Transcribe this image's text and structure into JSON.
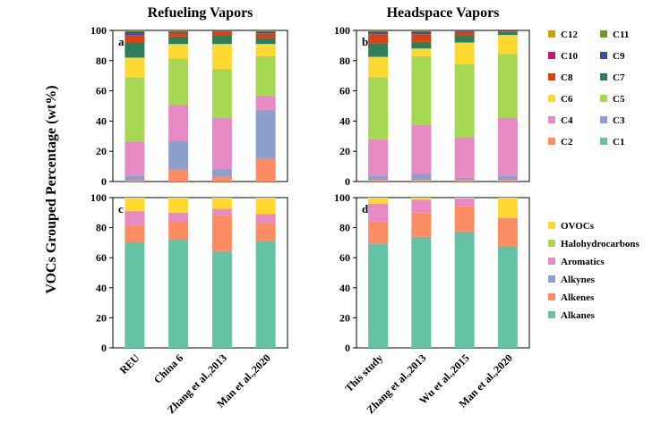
{
  "chart_data": {
    "type": "bar",
    "stacked": true,
    "ylabel": "VOCs Grouped Percentage (wt%)",
    "ylim": [
      0,
      100
    ],
    "yticks": [
      0,
      20,
      40,
      60,
      80,
      100
    ],
    "column_titles": [
      "Refueling Vapors",
      "Headspace Vapors"
    ],
    "legend_carbon": {
      "entries": [
        "C12",
        "C11",
        "C10",
        "C9",
        "C8",
        "C7",
        "C6",
        "C5",
        "C4",
        "C3",
        "C2",
        "C1"
      ],
      "colors": {
        "C1": "#66c2a5",
        "C2": "#fc8d62",
        "C3": "#8da0cb",
        "C4": "#e78ac3",
        "C5": "#a6d854",
        "C6": "#ffd92f",
        "C7": "#2e7d5b",
        "C8": "#d9420f",
        "C9": "#3a4f9e",
        "C10": "#c2187a",
        "C11": "#6b9e23",
        "C12": "#c9a10e"
      }
    },
    "legend_group": {
      "entries": [
        "OVOCs",
        "Halohydrocarbons",
        "Aromatics",
        "Alkynes",
        "Alkenes",
        "Alkanes"
      ],
      "colors": {
        "Alkanes": "#66c2a5",
        "Alkenes": "#fc8d62",
        "Alkynes": "#8da0cb",
        "Aromatics": "#e78ac3",
        "Halohydrocarbons": "#a6d854",
        "OVOCs": "#ffd92f"
      }
    },
    "panels": [
      {
        "label": "a",
        "categories": [
          "REU",
          "China 6",
          "Zhang et al.,2013",
          "Man et al.,2020"
        ],
        "stack_order": [
          "C1",
          "C2",
          "C3",
          "C4",
          "C5",
          "C6",
          "C7",
          "C8",
          "C9",
          "C10",
          "C11",
          "C12"
        ],
        "series": [
          {
            "name": "C1",
            "values": [
              0,
              0,
              0,
              0
            ]
          },
          {
            "name": "C2",
            "values": [
              0.5,
              8,
              3,
              15.5
            ]
          },
          {
            "name": "C3",
            "values": [
              3.5,
              19,
              5.5,
              32
            ]
          },
          {
            "name": "C4",
            "values": [
              22.5,
              24,
              34,
              9.5
            ]
          },
          {
            "name": "C5",
            "values": [
              42.5,
              30.5,
              32,
              26
            ]
          },
          {
            "name": "C6",
            "values": [
              13,
              9.5,
              16.5,
              8
            ]
          },
          {
            "name": "C7",
            "values": [
              10,
              5,
              6,
              4
            ]
          },
          {
            "name": "C8",
            "values": [
              5,
              2.5,
              2,
              3
            ]
          },
          {
            "name": "C9",
            "values": [
              2,
              0.5,
              0.5,
              1
            ]
          },
          {
            "name": "C10",
            "values": [
              0.5,
              0.5,
              0.3,
              0.5
            ]
          },
          {
            "name": "C11",
            "values": [
              0.3,
              0.3,
              0.2,
              0.3
            ]
          },
          {
            "name": "C12",
            "values": [
              0.2,
              0.2,
              0,
              0.2
            ]
          }
        ]
      },
      {
        "label": "b",
        "categories": [
          "This study",
          "Zhang et al.,2013",
          "Wu et al.,2015",
          "Man et al.,2020"
        ],
        "stack_order": [
          "C1",
          "C2",
          "C3",
          "C4",
          "C5",
          "C6",
          "C7",
          "C8",
          "C9",
          "C10",
          "C11",
          "C12"
        ],
        "series": [
          {
            "name": "C1",
            "values": [
              0,
              0,
              0,
              0
            ]
          },
          {
            "name": "C2",
            "values": [
              1,
              1,
              1,
              1
            ]
          },
          {
            "name": "C3",
            "values": [
              3,
              4,
              1.5,
              3
            ]
          },
          {
            "name": "C4",
            "values": [
              24,
              32.5,
              26.5,
              38
            ]
          },
          {
            "name": "C5",
            "values": [
              41,
              45.5,
              48.5,
              42.5
            ]
          },
          {
            "name": "C6",
            "values": [
              13.5,
              5,
              14.5,
              12.5
            ]
          },
          {
            "name": "C7",
            "values": [
              9,
              4.5,
              5,
              2
            ]
          },
          {
            "name": "C8",
            "values": [
              6,
              5,
              2.5,
              0.8
            ]
          },
          {
            "name": "C9",
            "values": [
              1.5,
              1.5,
              0.5,
              0.2
            ]
          },
          {
            "name": "C10",
            "values": [
              0.5,
              0.5,
              0,
              0
            ]
          },
          {
            "name": "C11",
            "values": [
              0.3,
              0.3,
              0,
              0
            ]
          },
          {
            "name": "C12",
            "values": [
              0.2,
              0.2,
              0,
              0
            ]
          }
        ]
      },
      {
        "label": "c",
        "categories": [
          "REU",
          "China 6",
          "Zhang et al.,2013",
          "Man et al.,2020"
        ],
        "stack_order": [
          "Alkanes",
          "Alkenes",
          "Alkynes",
          "Aromatics",
          "Halohydrocarbons",
          "OVOCs"
        ],
        "series": [
          {
            "name": "Alkanes",
            "values": [
              70.5,
              72,
              64.5,
              71.5
            ]
          },
          {
            "name": "Alkenes",
            "values": [
              11.5,
              12.5,
              24,
              12
            ]
          },
          {
            "name": "Alkynes",
            "values": [
              0,
              0,
              0,
              0
            ]
          },
          {
            "name": "Aromatics",
            "values": [
              9,
              5.5,
              4,
              5.5
            ]
          },
          {
            "name": "Halohydrocarbons",
            "values": [
              0,
              0,
              0,
              0
            ]
          },
          {
            "name": "OVOCs",
            "values": [
              9,
              10,
              7.5,
              11
            ]
          }
        ]
      },
      {
        "label": "d",
        "categories": [
          "This study",
          "Zhang et al.,2013",
          "Wu et al.,2015",
          "Man et al.,2020"
        ],
        "stack_order": [
          "Alkanes",
          "Alkenes",
          "Alkynes",
          "Aromatics",
          "Halohydrocarbons",
          "OVOCs"
        ],
        "series": [
          {
            "name": "Alkanes",
            "values": [
              69.5,
              74,
              77.5,
              67.5
            ]
          },
          {
            "name": "Alkenes",
            "values": [
              14.5,
              16,
              17,
              18.5
            ]
          },
          {
            "name": "Alkynes",
            "values": [
              0,
              0,
              0,
              0
            ]
          },
          {
            "name": "Aromatics",
            "values": [
              12,
              8.5,
              5,
              0.5
            ]
          },
          {
            "name": "Halohydrocarbons",
            "values": [
              0,
              0,
              0,
              0
            ]
          },
          {
            "name": "OVOCs",
            "values": [
              4,
              1.5,
              0.5,
              13.5
            ]
          }
        ]
      }
    ]
  }
}
